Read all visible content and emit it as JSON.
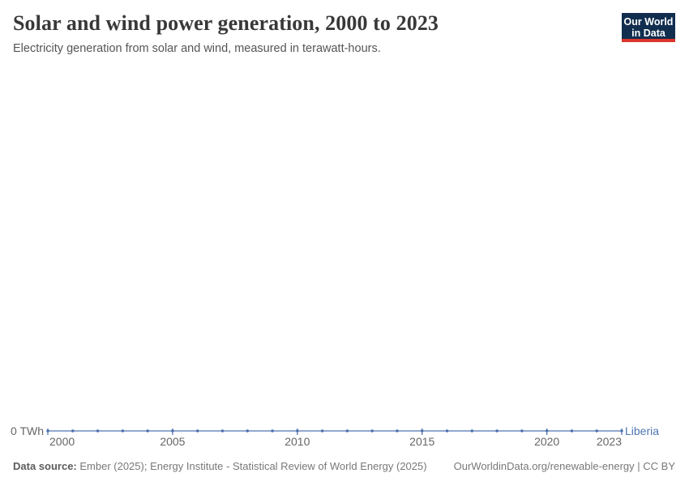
{
  "header": {
    "title": "Solar and wind power generation, 2000 to 2023",
    "subtitle": "Electricity generation from solar and wind, measured in terawatt-hours.",
    "logo_line1": "Our World",
    "logo_line2": "in Data"
  },
  "chart_data": {
    "type": "line",
    "title": "Solar and wind power generation, 2000 to 2023",
    "xlabel": "",
    "ylabel": "TWh",
    "x": [
      2000,
      2001,
      2002,
      2003,
      2004,
      2005,
      2006,
      2007,
      2008,
      2009,
      2010,
      2011,
      2012,
      2013,
      2014,
      2015,
      2016,
      2017,
      2018,
      2019,
      2020,
      2021,
      2022,
      2023
    ],
    "series": [
      {
        "name": "Liberia",
        "values": [
          0,
          0,
          0,
          0,
          0,
          0,
          0,
          0,
          0,
          0,
          0,
          0,
          0,
          0,
          0,
          0,
          0,
          0,
          0,
          0,
          0,
          0,
          0,
          0
        ],
        "color": "#4a70ad"
      }
    ],
    "x_tick_labels": [
      2000,
      2005,
      2010,
      2015,
      2020,
      2023
    ],
    "y_zero_label": "0 TWh",
    "entity_label": "Liberia",
    "grid": "off",
    "legend_position": "right-of-line-end",
    "unit": "terawatt-hours"
  },
  "colors": {
    "line": "#6d8cc0",
    "point": "#4a70ad",
    "tick": "#4a70ad",
    "entity_text": "#4f76b0",
    "logo_navy": "#112e4f",
    "logo_red": "#dc352b"
  },
  "footer": {
    "source_label": "Data source:",
    "source_text": " Ember (2025); Energy Institute - Statistical Review of World Energy (2025)",
    "right_text": "OurWorldinData.org/renewable-energy | CC BY"
  }
}
